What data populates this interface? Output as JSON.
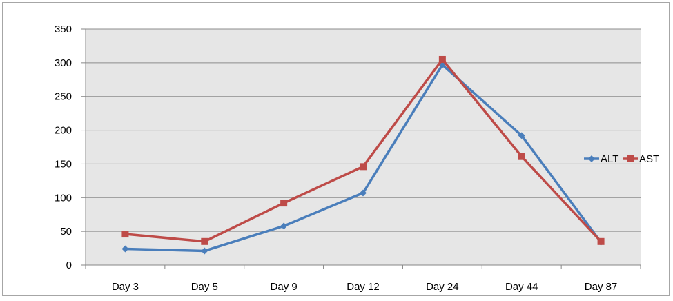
{
  "chart_data": {
    "type": "line",
    "title": "",
    "xlabel": "",
    "ylabel": "",
    "categories": [
      "Day 3",
      "Day 5",
      "Day 9",
      "Day 12",
      "Day 24",
      "Day 44",
      "Day 87"
    ],
    "ylim": [
      0,
      350
    ],
    "yticks": [
      0,
      50,
      100,
      150,
      200,
      250,
      300,
      350
    ],
    "grid": true,
    "legend_position": "right",
    "series": [
      {
        "name": "ALT",
        "values": [
          24,
          21,
          58,
          107,
          297,
          192,
          34
        ],
        "color": "#4a7ebb",
        "marker": "diamond"
      },
      {
        "name": "AST",
        "values": [
          46,
          35,
          92,
          146,
          305,
          161,
          35
        ],
        "color": "#be4b48",
        "marker": "square"
      }
    ],
    "plot_background": "#e6e6e6",
    "gridline_color": "#8c8c8c"
  }
}
